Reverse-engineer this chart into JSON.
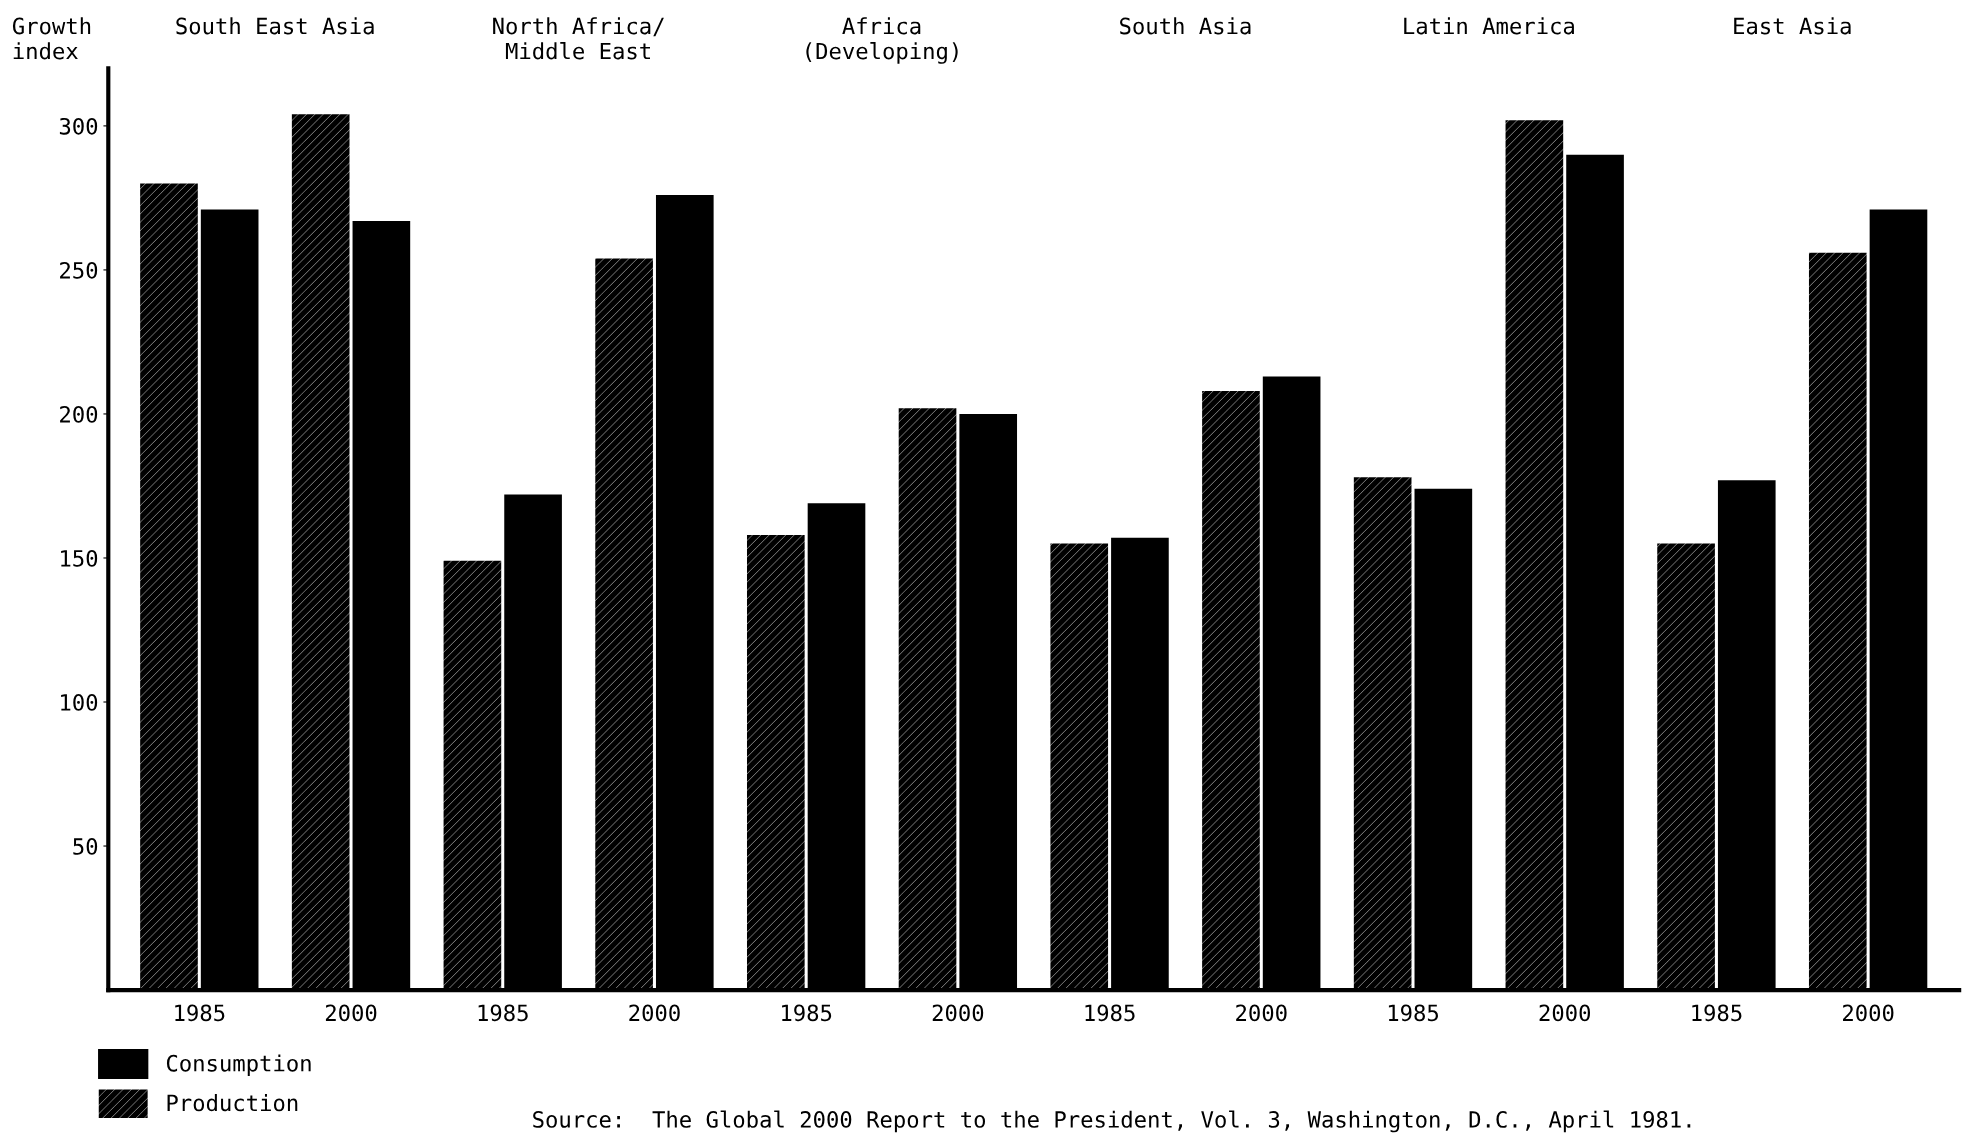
{
  "chart_data": {
    "type": "bar",
    "ylabel": "Growth\nindex",
    "categories": [
      "1985",
      "2000",
      "1985",
      "2000",
      "1985",
      "2000",
      "1985",
      "2000",
      "1985",
      "2000",
      "1985",
      "2000"
    ],
    "series": [
      {
        "name": "Production",
        "color": "#000000",
        "values": [
          280,
          304,
          149,
          254,
          158,
          202,
          155,
          208,
          178,
          302,
          155,
          256
        ]
      },
      {
        "name": "Consumption",
        "color": "#000000",
        "values": [
          271,
          267,
          172,
          276,
          169,
          200,
          157,
          213,
          174,
          290,
          177,
          271
        ]
      }
    ],
    "annotations": [
      "South East Asia",
      "North Africa/\nMiddle East",
      "Africa\n(Developing)",
      "South Asia",
      "Latin America",
      "East Asia",
      "Source:  The Global 2000 Report to the President, Vol. 3, Washington, D.C., April 1981."
    ],
    "ylim": [
      0,
      320
    ],
    "yticks": [
      50,
      100,
      150,
      200,
      250,
      300
    ],
    "grid": false,
    "legend": "bottom left"
  }
}
